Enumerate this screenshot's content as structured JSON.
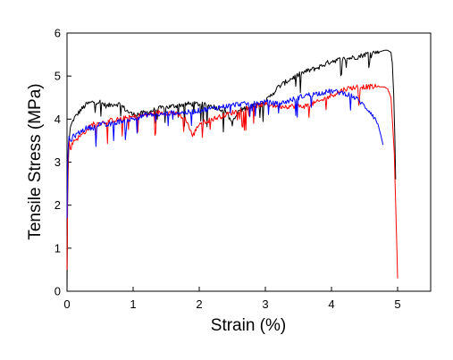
{
  "chart_data": {
    "type": "line",
    "title": "",
    "xlabel": "Strain (%)",
    "ylabel": "Tensile Stress (MPa)",
    "xlim": [
      0,
      5.5
    ],
    "ylim": [
      0,
      6
    ],
    "xticks": [
      "0",
      "1",
      "2",
      "3",
      "4",
      "5"
    ],
    "yticks": [
      "0",
      "1",
      "2",
      "3",
      "4",
      "5",
      "6"
    ],
    "grid": false,
    "legend": "none",
    "series": [
      {
        "color": "#000000",
        "x": [
          0,
          0.01,
          0.02,
          0.03,
          0.05,
          0.1,
          0.2,
          0.3,
          0.4,
          0.5,
          0.6,
          0.7,
          0.8,
          0.9,
          1.0,
          1.2,
          1.4,
          1.6,
          1.8,
          2.0,
          2.2,
          2.4,
          2.5,
          2.6,
          2.8,
          3.0,
          3.2,
          3.4,
          3.6,
          3.8,
          4.0,
          4.2,
          4.4,
          4.6,
          4.7,
          4.8,
          4.85,
          4.9,
          4.92,
          4.94,
          4.96,
          4.97
        ],
        "y": [
          0,
          2.2,
          3.0,
          3.5,
          3.8,
          4.0,
          4.2,
          4.35,
          4.4,
          4.4,
          4.3,
          4.35,
          4.35,
          4.2,
          4.1,
          4.15,
          4.25,
          4.3,
          4.35,
          4.35,
          4.3,
          4.2,
          3.9,
          4.2,
          4.3,
          4.4,
          4.75,
          4.95,
          5.1,
          5.2,
          5.35,
          5.4,
          5.45,
          5.55,
          5.55,
          5.6,
          5.6,
          5.55,
          5.3,
          4.6,
          3.5,
          2.6
        ]
      },
      {
        "color": "#ff0000",
        "x": [
          0,
          0.01,
          0.02,
          0.03,
          0.05,
          0.1,
          0.2,
          0.3,
          0.4,
          0.5,
          0.6,
          0.8,
          1.0,
          1.2,
          1.4,
          1.6,
          1.8,
          1.9,
          2.0,
          2.2,
          2.4,
          2.6,
          2.8,
          3.0,
          3.2,
          3.4,
          3.6,
          3.8,
          4.0,
          4.2,
          4.4,
          4.6,
          4.7,
          4.8,
          4.85,
          4.9,
          4.95,
          4.98,
          5.0
        ],
        "y": [
          0.5,
          2.5,
          3.2,
          3.5,
          3.3,
          3.5,
          3.6,
          3.75,
          3.9,
          3.9,
          3.95,
          4.0,
          4.05,
          4.1,
          4.15,
          4.15,
          4.0,
          3.6,
          3.9,
          4.0,
          4.1,
          4.2,
          4.3,
          4.35,
          4.3,
          4.3,
          4.3,
          4.4,
          4.55,
          4.7,
          4.75,
          4.75,
          4.75,
          4.75,
          4.7,
          4.5,
          3.2,
          1.5,
          0.3
        ]
      },
      {
        "color": "#0000ff",
        "x": [
          0,
          0.01,
          0.02,
          0.03,
          0.05,
          0.1,
          0.2,
          0.3,
          0.4,
          0.5,
          0.6,
          0.8,
          1.0,
          1.2,
          1.4,
          1.6,
          1.8,
          2.0,
          2.2,
          2.4,
          2.6,
          2.8,
          3.0,
          3.2,
          3.4,
          3.6,
          3.8,
          4.0,
          4.2,
          4.3,
          4.4,
          4.5,
          4.6,
          4.7,
          4.75,
          4.78
        ],
        "y": [
          1.7,
          3.0,
          3.4,
          3.6,
          3.5,
          3.6,
          3.7,
          3.8,
          3.8,
          3.9,
          3.85,
          3.95,
          4.0,
          4.1,
          4.1,
          4.15,
          4.15,
          4.2,
          4.25,
          4.3,
          4.35,
          4.35,
          4.4,
          4.35,
          4.45,
          4.55,
          4.6,
          4.65,
          4.6,
          4.55,
          4.45,
          4.3,
          4.15,
          3.9,
          3.6,
          3.4
        ]
      }
    ]
  }
}
